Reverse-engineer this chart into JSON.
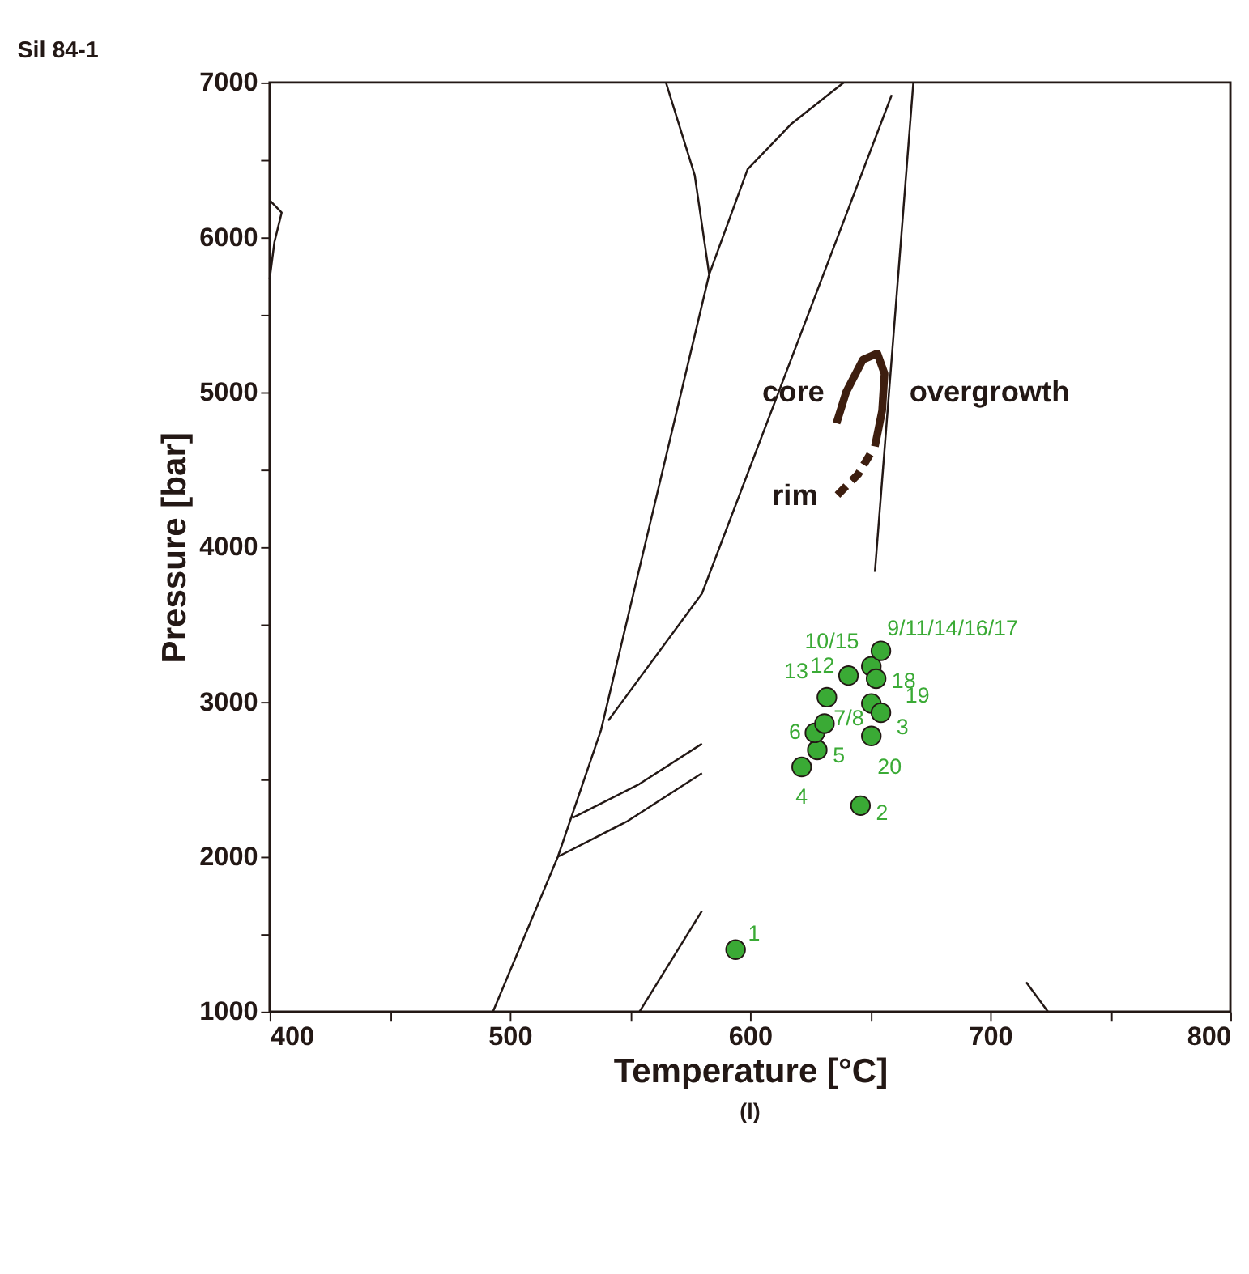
{
  "chart_data": {
    "type": "line",
    "title": "Sil 84-1",
    "xlabel": "Temperature [°C]",
    "ylabel": "Pressure [bar]",
    "xlim": [
      400,
      800
    ],
    "ylim": [
      1000,
      7000
    ],
    "xticks": [
      400,
      {
        "value": 450,
        "label": null
      },
      500,
      {
        "value": 550,
        "label": null
      },
      600,
      {
        "value": 650,
        "label": null
      },
      700,
      {
        "value": 750,
        "label": null
      },
      800
    ],
    "yticks": [
      1000,
      {
        "value": 1500,
        "label": null
      },
      2000,
      {
        "value": 2500,
        "label": null
      },
      3000,
      {
        "value": 3500,
        "label": null
      },
      4000,
      {
        "value": 4500,
        "label": null
      },
      5000,
      {
        "value": 5500,
        "label": null
      },
      6000,
      {
        "value": 6500,
        "label": null
      },
      7000
    ],
    "grid": false,
    "marker": "none",
    "line_style": "solid",
    "series": [
      {
        "color": "#231815",
        "x": [
          565,
          577,
          583,
          538,
          520,
          493
        ],
        "values": [
          7000,
          6400,
          5760,
          2820,
          2000,
          1000
        ]
      },
      {
        "color": "#231815",
        "x": [
          583,
          599,
          617,
          639
        ],
        "values": [
          5760,
          6440,
          6730,
          7000
        ]
      },
      {
        "color": "#231815",
        "x": [
          659,
          580,
          541
        ],
        "values": [
          6920,
          3700,
          2880
        ]
      },
      {
        "color": "#231815",
        "x": [
          668,
          652
        ],
        "values": [
          7000,
          3840
        ]
      },
      {
        "color": "#231815",
        "x": [
          526,
          554,
          580
        ],
        "values": [
          2250,
          2470,
          2730
        ]
      },
      {
        "color": "#231815",
        "x": [
          520,
          549,
          580
        ],
        "values": [
          2000,
          2230,
          2540
        ]
      },
      {
        "color": "#231815",
        "x": [
          554,
          580
        ],
        "values": [
          1000,
          1650
        ]
      },
      {
        "color": "#231815",
        "x": [
          715,
          724
        ],
        "values": [
          1190,
          1000
        ]
      },
      {
        "color": "#231815",
        "x": [
          400,
          405,
          402,
          400
        ],
        "values": [
          6240,
          6160,
          5970,
          5730
        ]
      },
      {
        "color": "#3d1e0f",
        "x": [
          636,
          640,
          647,
          653,
          656,
          655,
          652
        ],
        "values": [
          4800,
          5000,
          5210,
          5250,
          5120,
          4880,
          4650
        ]
      },
      {
        "color": "#3d1e0f",
        "line_style": "dashed",
        "x": [
          650,
          645,
          636
        ],
        "values": [
          4600,
          4470,
          4330
        ]
      },
      {
        "type": "scatter",
        "marker": "circle",
        "color": "#3aaa35",
        "x": [
          594,
          646,
          621.5,
          628,
          627,
          631,
          632,
          641,
          650.5,
          654.5,
          652.5,
          650.5,
          654.5,
          650.5
        ],
        "values": [
          1400,
          2330,
          2580,
          2690,
          2800,
          2860,
          3030,
          3170,
          3230,
          3330,
          3150,
          2990,
          2930,
          2780
        ]
      }
    ],
    "annotations": [
      {
        "text": "core",
        "x": 640,
        "y": 5000
      },
      {
        "text": "overgrowth",
        "x": 656,
        "y": 5120
      },
      {
        "text": "rim",
        "x": 636,
        "y": 4330
      },
      {
        "text": "1",
        "x": 594,
        "y": 1400
      },
      {
        "text": "2",
        "x": 646,
        "y": 2330
      },
      {
        "text": "4",
        "x": 621.5,
        "y": 2580
      },
      {
        "text": "5",
        "x": 628,
        "y": 2690
      },
      {
        "text": "6",
        "x": 627,
        "y": 2800
      },
      {
        "text": "7/8",
        "x": 631,
        "y": 2860
      },
      {
        "text": "13",
        "x": 632,
        "y": 3030
      },
      {
        "text": "12",
        "x": 641,
        "y": 3170
      },
      {
        "text": "10/15",
        "x": 650.5,
        "y": 3225
      },
      {
        "text": "9/11/14/16/17",
        "x": 654.5,
        "y": 3330
      },
      {
        "text": "18",
        "x": 652.5,
        "y": 3150
      },
      {
        "text": "19",
        "x": 650.5,
        "y": 2995
      },
      {
        "text": "3",
        "x": 654.5,
        "y": 2930
      },
      {
        "text": "20",
        "x": 650.5,
        "y": 2775
      },
      "(l)"
    ]
  }
}
